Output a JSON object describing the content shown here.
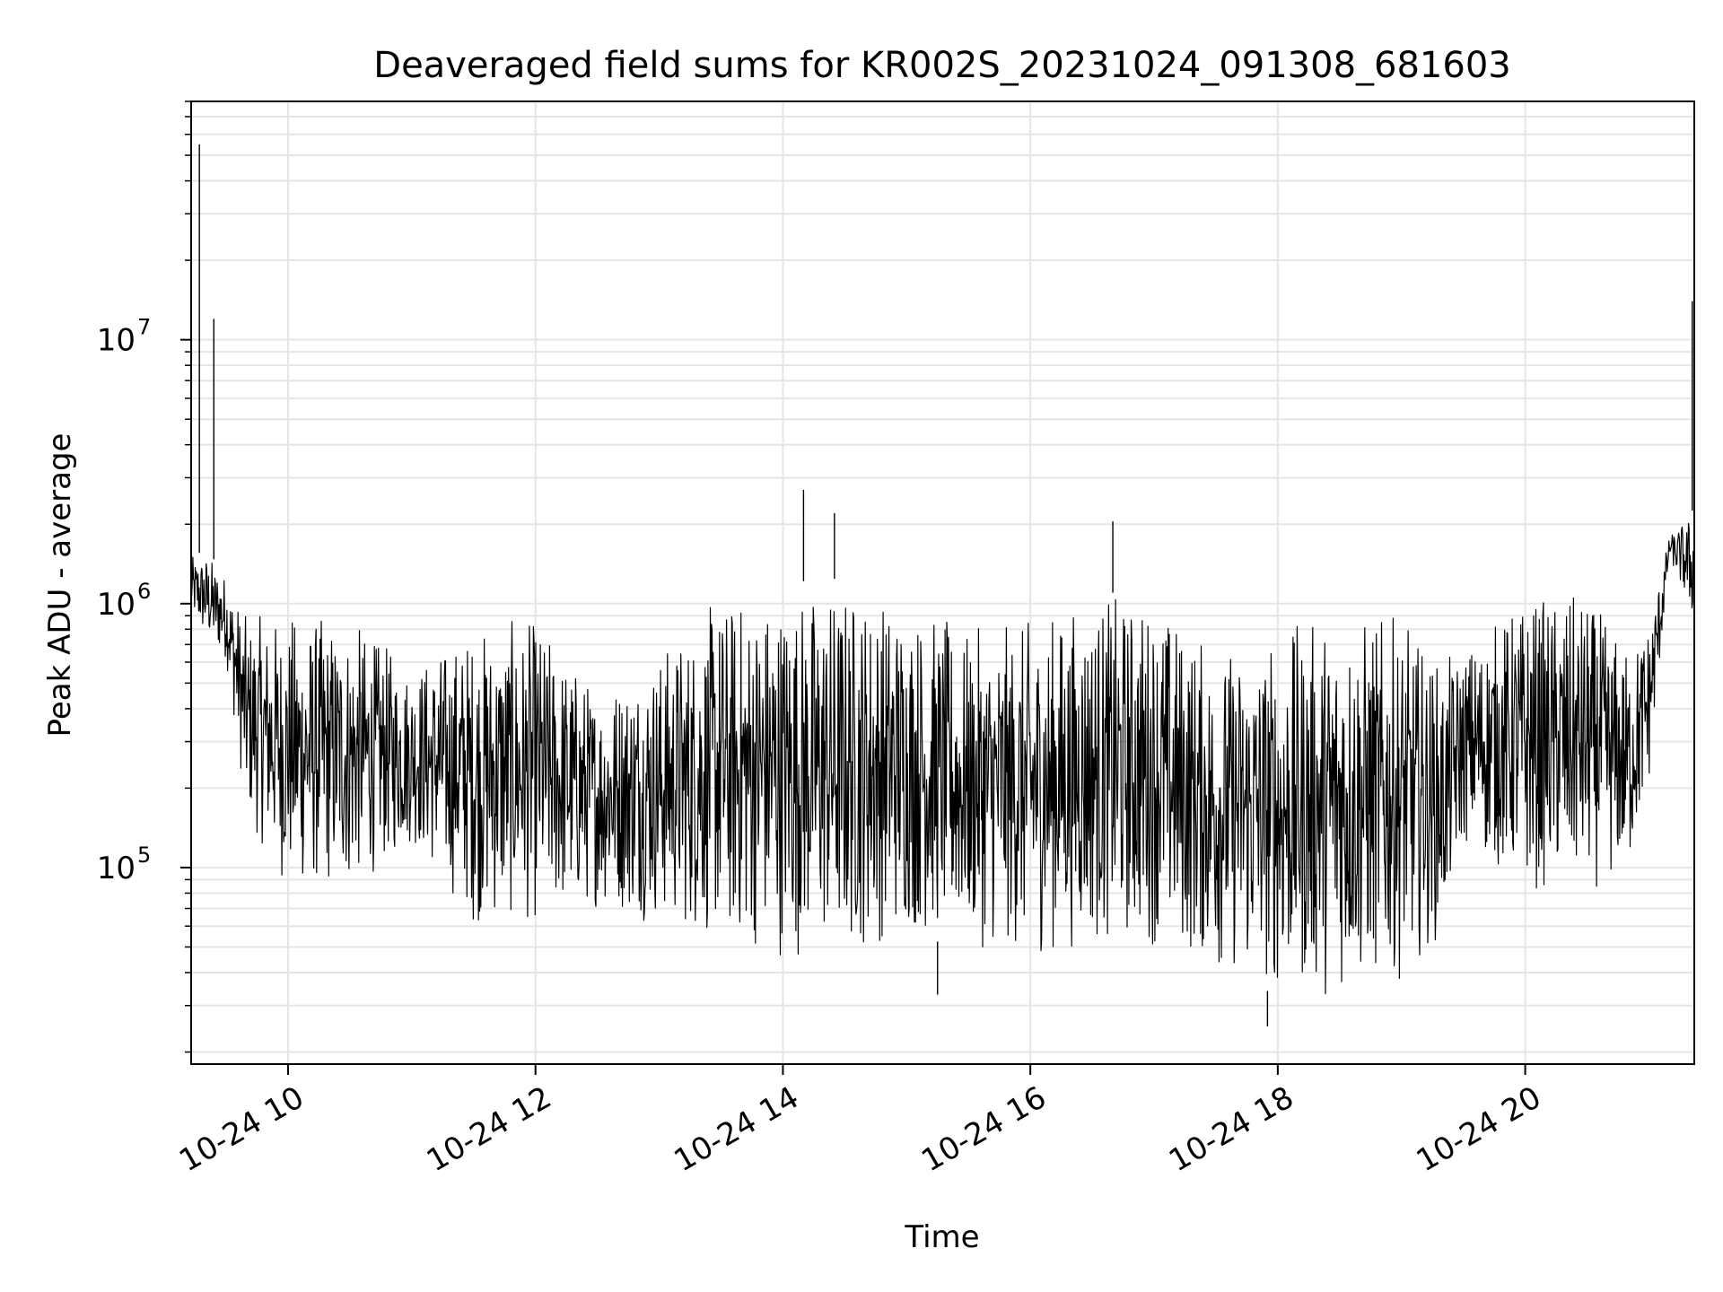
{
  "chart_data": {
    "type": "line",
    "title": "Deaveraged field sums for KR002S_20231024_091308_681603",
    "xlabel": "Time",
    "ylabel": "Peak ADU - average",
    "yscale": "log",
    "xlim": [
      "2023-10-24 09:13",
      "2023-10-24 21:22"
    ],
    "ylim": [
      18000,
      80000000
    ],
    "x_ticks": [
      {
        "t": "2023-10-24 10:00",
        "label": "10-24 10"
      },
      {
        "t": "2023-10-24 12:00",
        "label": "10-24 12"
      },
      {
        "t": "2023-10-24 14:00",
        "label": "10-24 14"
      },
      {
        "t": "2023-10-24 16:00",
        "label": "10-24 16"
      },
      {
        "t": "2023-10-24 18:00",
        "label": "10-24 18"
      },
      {
        "t": "2023-10-24 20:00",
        "label": "10-24 20"
      }
    ],
    "y_ticks": [
      {
        "value": 100000,
        "base": "10",
        "exp": "5"
      },
      {
        "value": 1000000,
        "base": "10",
        "exp": "6"
      },
      {
        "value": 10000000,
        "base": "10",
        "exp": "7"
      }
    ],
    "grid": true,
    "line_color": "#000000",
    "grid_color": "#e5e5e5",
    "series_profile": {
      "x": [
        "2023-10-24 09:13",
        "2023-10-24 09:20",
        "2023-10-24 09:30",
        "2023-10-24 09:40",
        "2023-10-24 10:00",
        "2023-10-24 10:30",
        "2023-10-24 11:00",
        "2023-10-24 11:30",
        "2023-10-24 12:00",
        "2023-10-24 12:30",
        "2023-10-24 13:00",
        "2023-10-24 13:30",
        "2023-10-24 14:00",
        "2023-10-24 14:30",
        "2023-10-24 15:00",
        "2023-10-24 15:30",
        "2023-10-24 16:00",
        "2023-10-24 16:30",
        "2023-10-24 17:00",
        "2023-10-24 17:30",
        "2023-10-24 18:00",
        "2023-10-24 18:30",
        "2023-10-24 19:00",
        "2023-10-24 19:20",
        "2023-10-24 19:30",
        "2023-10-24 20:00",
        "2023-10-24 20:30",
        "2023-10-24 20:50",
        "2023-10-24 21:00",
        "2023-10-24 21:10",
        "2023-10-24 21:22"
      ],
      "high": [
        1500000,
        1600000,
        1300000,
        900000,
        950000,
        900000,
        600000,
        850000,
        900000,
        500000,
        700000,
        1100000,
        1200000,
        1250000,
        1100000,
        800000,
        900000,
        1100000,
        1100000,
        700000,
        800000,
        1000000,
        900000,
        600000,
        700000,
        1100000,
        1100000,
        700000,
        900000,
        1800000,
        2300000
      ],
      "low": [
        900000,
        700000,
        600000,
        150000,
        80000,
        80000,
        120000,
        60000,
        60000,
        70000,
        60000,
        50000,
        45000,
        45000,
        55000,
        50000,
        45000,
        50000,
        50000,
        40000,
        33000,
        32000,
        38000,
        55000,
        120000,
        80000,
        80000,
        90000,
        200000,
        1500000,
        800000
      ]
    },
    "spikes": [
      {
        "x": "2023-10-24 09:17",
        "y": 55000000
      },
      {
        "x": "2023-10-24 09:24",
        "y": 12000000
      },
      {
        "x": "2023-10-24 14:10",
        "y": 2700000
      },
      {
        "x": "2023-10-24 14:25",
        "y": 2200000
      },
      {
        "x": "2023-10-24 16:40",
        "y": 2050000
      },
      {
        "x": "2023-10-24 15:15",
        "y": 33000
      },
      {
        "x": "2023-10-24 17:55",
        "y": 25000
      },
      {
        "x": "2023-10-24 21:21",
        "y": 14000000
      }
    ]
  }
}
